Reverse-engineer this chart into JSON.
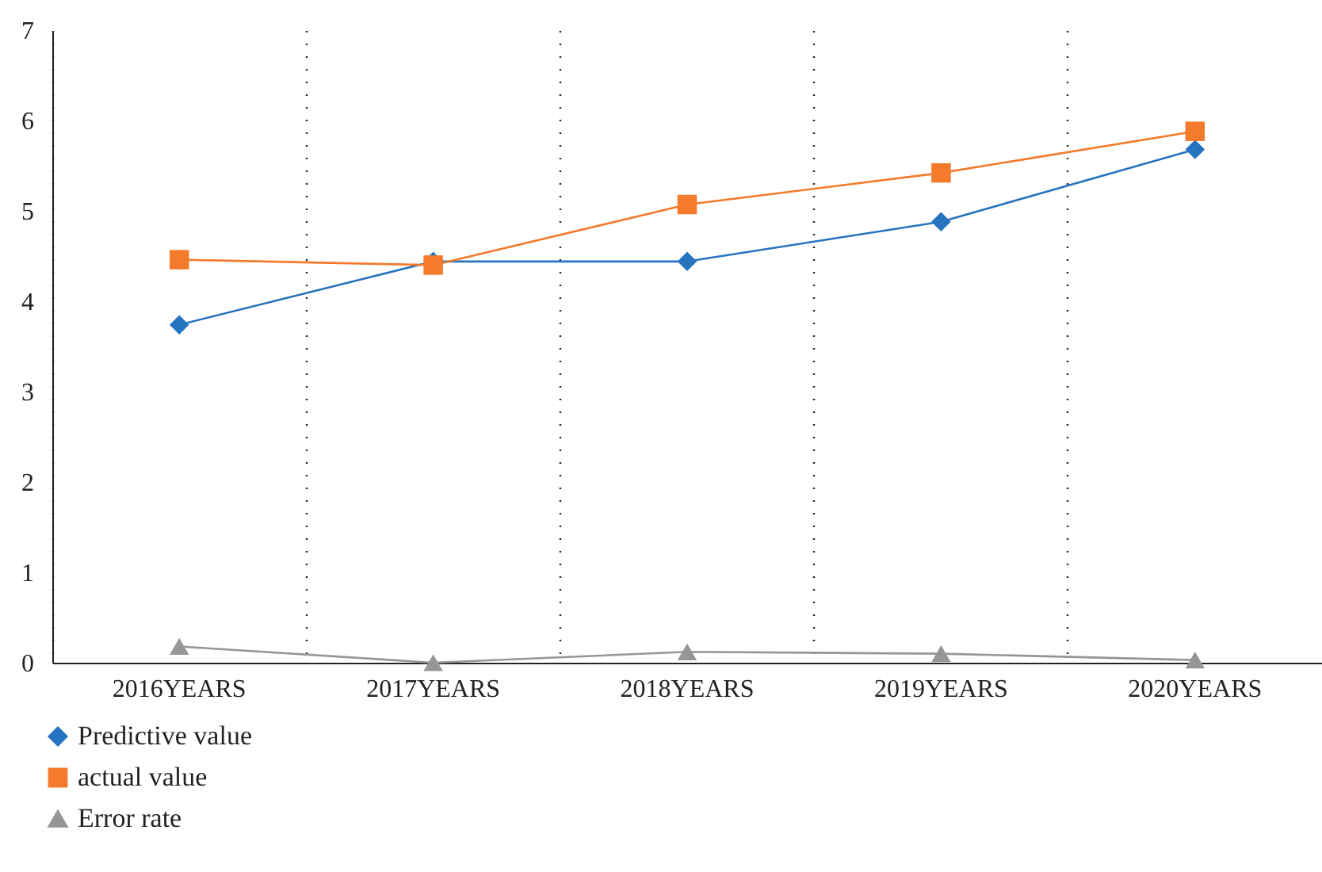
{
  "chart_data": {
    "type": "line",
    "categories": [
      "2016YEARS",
      "2017YEARS",
      "2018YEARS",
      "2019YEARS",
      "2020YEARS"
    ],
    "series": [
      {
        "name": "Predictive value",
        "color": "#2673c0",
        "marker": "diamond",
        "values": [
          3.74,
          4.44,
          4.44,
          4.88,
          5.68
        ]
      },
      {
        "name": "actual value",
        "color": "#f47a2c",
        "marker": "square",
        "values": [
          4.46,
          4.4,
          5.07,
          5.42,
          5.88
        ]
      },
      {
        "name": "Error rate",
        "color": "#969696",
        "marker": "triangle",
        "values": [
          0.18,
          0,
          0.12,
          0.1,
          0.03
        ]
      }
    ],
    "ylim": [
      0,
      7
    ],
    "yticks": [
      0,
      1,
      2,
      3,
      4,
      5,
      6,
      7
    ],
    "grid": "x",
    "legend": "bottom left",
    "line_style": "solid"
  }
}
